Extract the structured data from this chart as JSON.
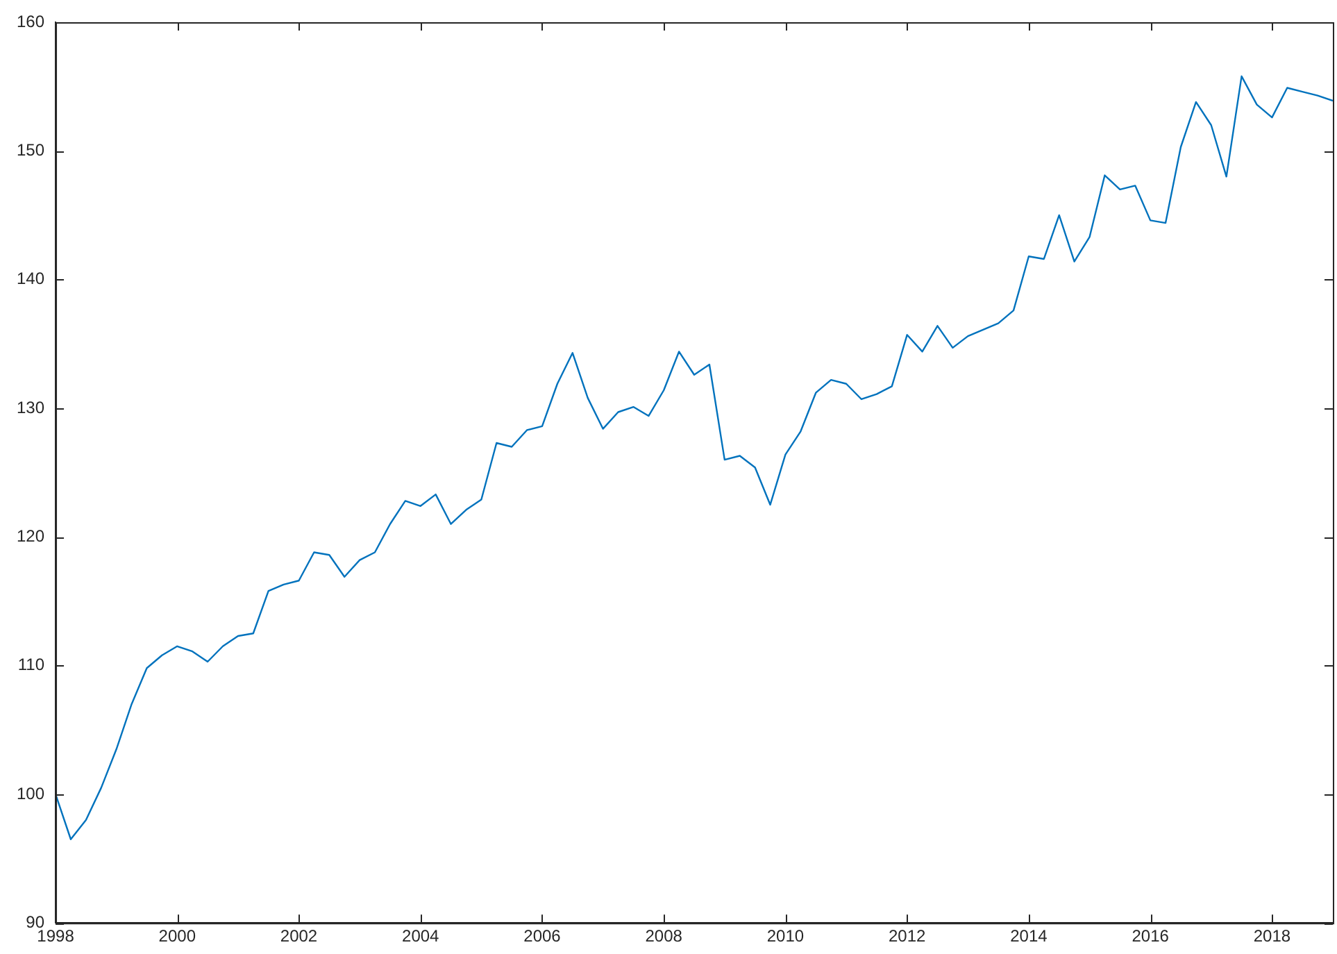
{
  "chart_data": {
    "type": "line",
    "x": [
      1998,
      1998.25,
      1998.5,
      1998.75,
      1999,
      1999.25,
      1999.5,
      1999.75,
      2000,
      2000.25,
      2000.5,
      2000.75,
      2001,
      2001.25,
      2001.5,
      2001.75,
      2002,
      2002.25,
      2002.5,
      2002.75,
      2003,
      2003.25,
      2003.5,
      2003.75,
      2004,
      2004.25,
      2004.5,
      2004.75,
      2005,
      2005.25,
      2005.5,
      2005.75,
      2006,
      2006.25,
      2006.5,
      2006.75,
      2007,
      2007.25,
      2007.5,
      2007.75,
      2008,
      2008.25,
      2008.5,
      2008.75,
      2009,
      2009.25,
      2009.5,
      2009.75,
      2010,
      2010.25,
      2010.5,
      2010.75,
      2011,
      2011.25,
      2011.5,
      2011.75,
      2012,
      2012.25,
      2012.5,
      2012.75,
      2013,
      2013.25,
      2013.5,
      2013.75,
      2014,
      2014.25,
      2014.5,
      2014.75,
      2015,
      2015.25,
      2015.5,
      2015.75,
      2016,
      2016.25,
      2016.5,
      2016.75,
      2017,
      2017.25,
      2017.5,
      2017.75,
      2018,
      2018.25,
      2018.5,
      2018.75,
      2019
    ],
    "series": [
      {
        "color": "#0072bd",
        "values": [
          100,
          96.5,
          98,
          100.5,
          103.5,
          107,
          109.8,
          110.8,
          111.5,
          111.1,
          110.3,
          111.5,
          112.3,
          112.5,
          115.8,
          116.3,
          116.6,
          118.8,
          118.6,
          116.9,
          118.2,
          118.8,
          121,
          122.8,
          122.4,
          123.3,
          121,
          122.1,
          122.9,
          127.3,
          127,
          128.3,
          128.6,
          131.9,
          134.3,
          130.8,
          128.4,
          129.7,
          130.1,
          129.4,
          131.4,
          134.4,
          132.6,
          133.4,
          126,
          126.3,
          125.4,
          122.5,
          126.4,
          128.2,
          131.2,
          132.2,
          131.9,
          130.7,
          131.1,
          131.7,
          135.7,
          134.4,
          136.4,
          134.7,
          135.6,
          136.1,
          136.6,
          137.6,
          141.8,
          141.6,
          145,
          141.4,
          143.3,
          148.1,
          147,
          147.3,
          144.6,
          144.4,
          150.3,
          153.8,
          152,
          148,
          155.8,
          153.6,
          152.6,
          154.9,
          154.6,
          154.3,
          153.9
        ]
      }
    ],
    "xlim": [
      1998,
      2019
    ],
    "xticks": [
      1998,
      2000,
      2002,
      2004,
      2006,
      2008,
      2010,
      2012,
      2014,
      2016,
      2018
    ],
    "ylim": [
      90,
      160
    ],
    "yticks": [
      90,
      100,
      110,
      120,
      130,
      140,
      150,
      160
    ],
    "grid": false,
    "legend": false,
    "marker": "none",
    "line_style": "solid"
  }
}
